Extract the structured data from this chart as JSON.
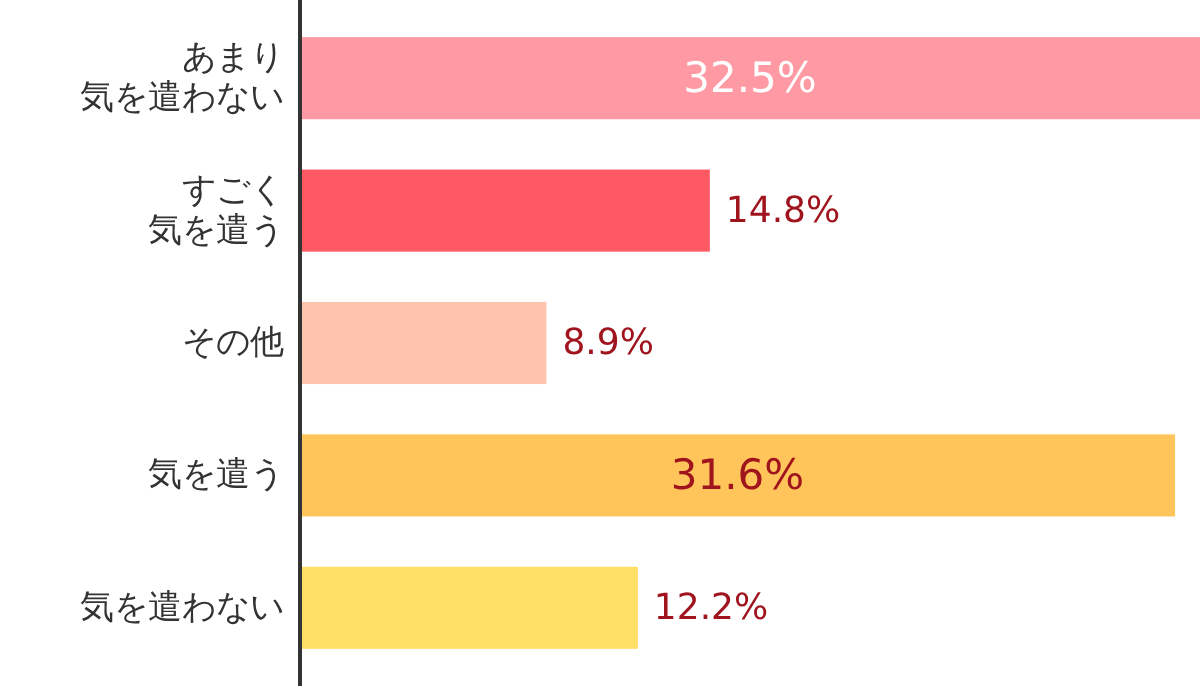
{
  "chart_data": {
    "type": "bar",
    "orientation": "horizontal",
    "categories": [
      "あまり気を遣わない",
      "すごく気を遣う",
      "その他",
      "気を遣う",
      "気を遣わない"
    ],
    "values": [
      32.5,
      14.8,
      8.9,
      31.6,
      12.2
    ],
    "value_labels": [
      "32.5%",
      "14.8%",
      "8.9%",
      "31.6%",
      "12.2%"
    ],
    "colors": [
      "#ff9aa5",
      "#ff5a64",
      "#ffc4ad",
      "#ffc45a",
      "#ffdf66"
    ],
    "data_labels": false
  }
}
